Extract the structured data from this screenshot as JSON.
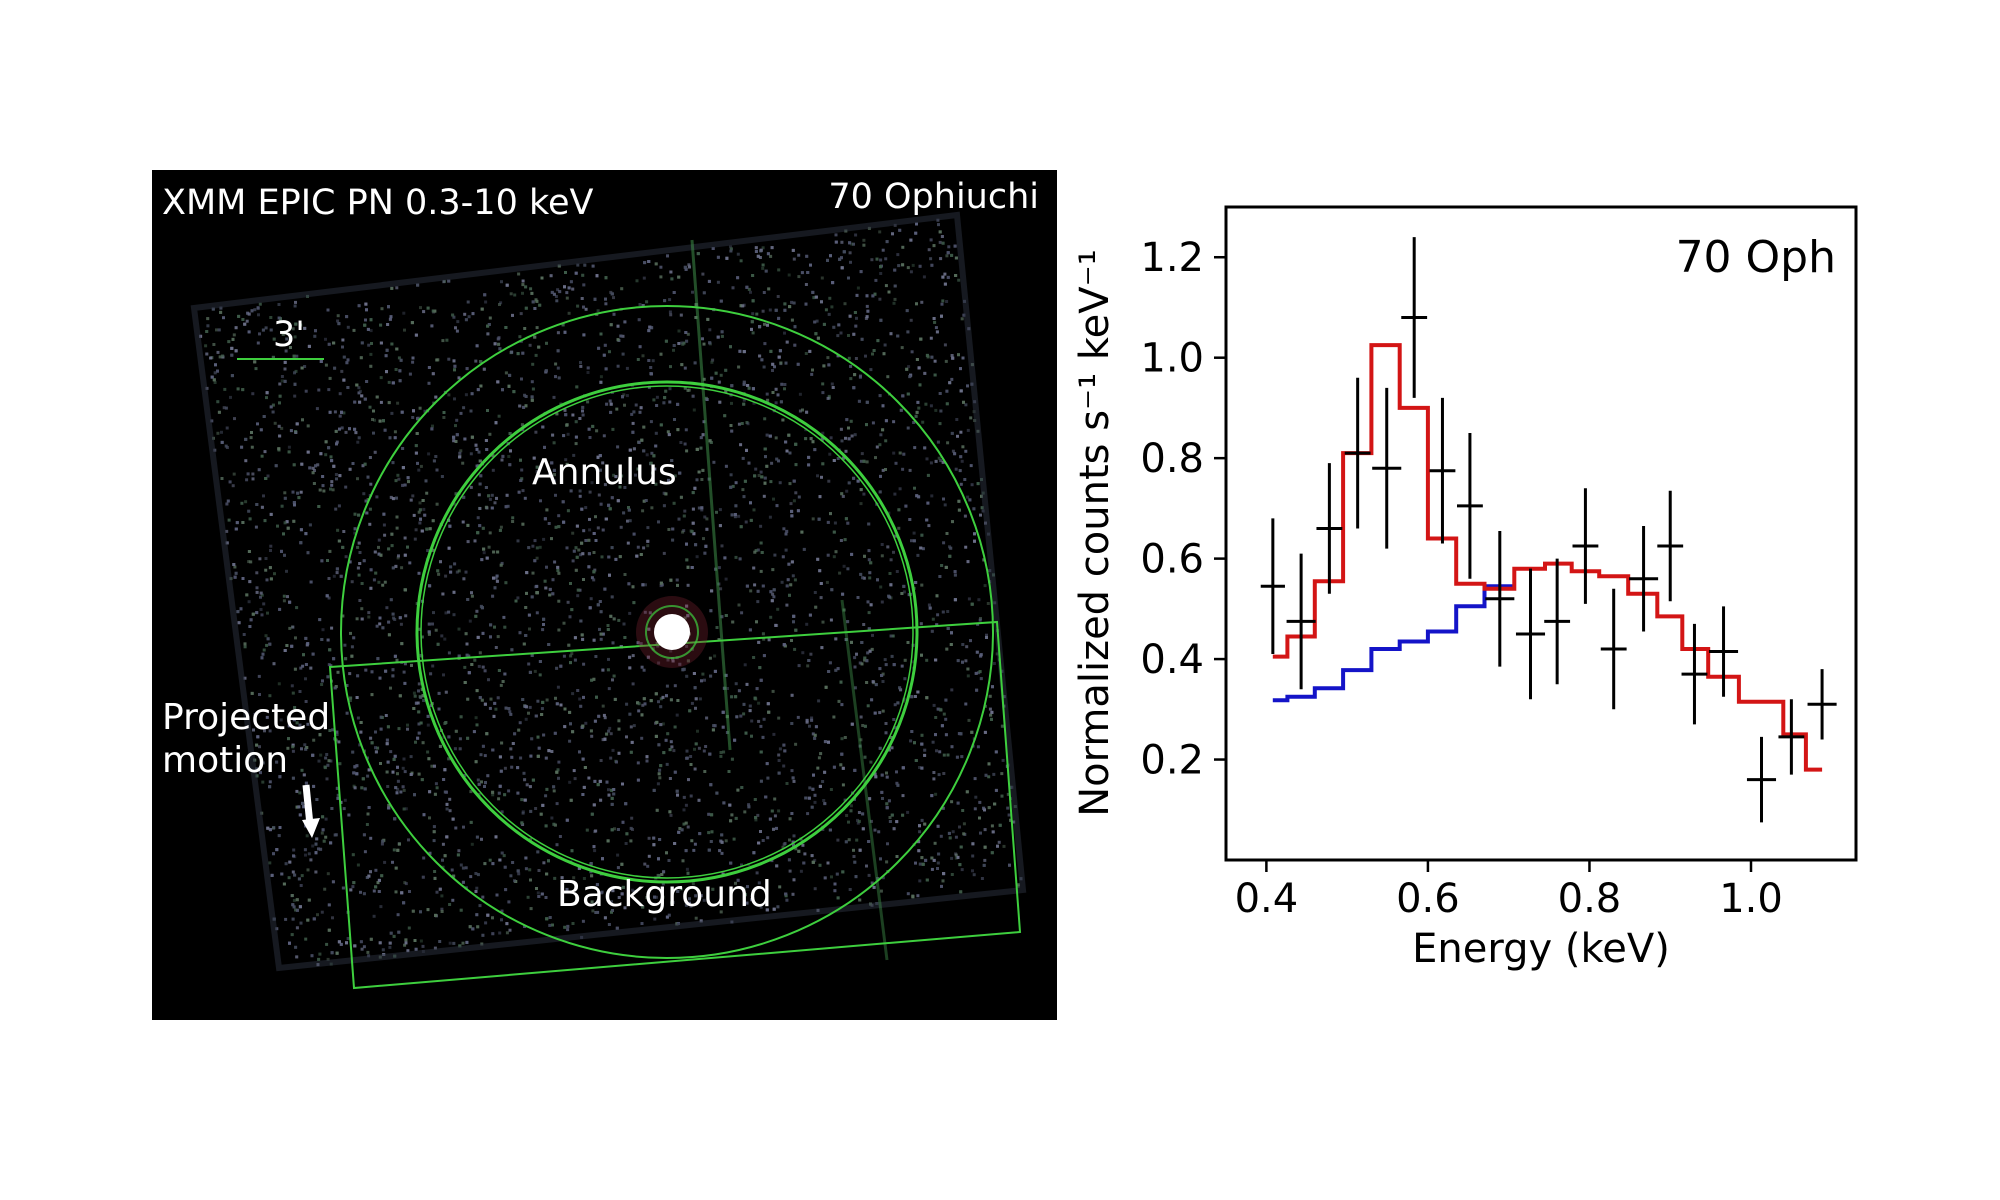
{
  "image_panel": {
    "title": "XMM EPIC PN 0.3-10 keV",
    "target": "70 Ophiuchi",
    "scale_label": "3'",
    "annulus_label": "Annulus",
    "background_label": "Background",
    "motion_label_1": "Projected",
    "motion_label_2": "motion",
    "colors": {
      "background": "#000000",
      "regions": "#3ecf3e",
      "arrow": "#ffffff"
    }
  },
  "chart_data": {
    "type": "line",
    "title": "70 Oph",
    "xlabel": "Energy (keV)",
    "ylabel": "Normalized counts s⁻¹ keV⁻¹",
    "xlim": [
      0.35,
      1.13
    ],
    "ylim": [
      0.0,
      1.3
    ],
    "x_ticks": [
      0.4,
      0.6,
      0.8,
      1.0
    ],
    "x_tick_labels": [
      "0.4",
      "0.6",
      "0.8",
      "1.0"
    ],
    "y_ticks": [
      0.2,
      0.4,
      0.6,
      0.8,
      1.0,
      1.2
    ],
    "y_tick_labels": [
      "0.2",
      "0.4",
      "0.6",
      "0.8",
      "1.0",
      "1.2"
    ],
    "data_points": [
      {
        "x": 0.408,
        "y": 0.545,
        "xerr": 0.015,
        "yerr": 0.135
      },
      {
        "x": 0.443,
        "y": 0.475,
        "xerr": 0.018,
        "yerr": 0.135
      },
      {
        "x": 0.478,
        "y": 0.66,
        "xerr": 0.016,
        "yerr": 0.13
      },
      {
        "x": 0.513,
        "y": 0.81,
        "xerr": 0.016,
        "yerr": 0.15
      },
      {
        "x": 0.549,
        "y": 0.78,
        "xerr": 0.018,
        "yerr": 0.16
      },
      {
        "x": 0.583,
        "y": 1.08,
        "xerr": 0.016,
        "yerr": 0.16
      },
      {
        "x": 0.618,
        "y": 0.775,
        "xerr": 0.016,
        "yerr": 0.145
      },
      {
        "x": 0.652,
        "y": 0.705,
        "xerr": 0.016,
        "yerr": 0.145
      },
      {
        "x": 0.689,
        "y": 0.52,
        "xerr": 0.018,
        "yerr": 0.135
      },
      {
        "x": 0.727,
        "y": 0.45,
        "xerr": 0.018,
        "yerr": 0.13
      },
      {
        "x": 0.76,
        "y": 0.475,
        "xerr": 0.016,
        "yerr": 0.125
      },
      {
        "x": 0.795,
        "y": 0.625,
        "xerr": 0.016,
        "yerr": 0.115
      },
      {
        "x": 0.83,
        "y": 0.42,
        "xerr": 0.016,
        "yerr": 0.12
      },
      {
        "x": 0.867,
        "y": 0.56,
        "xerr": 0.018,
        "yerr": 0.105
      },
      {
        "x": 0.9,
        "y": 0.625,
        "xerr": 0.016,
        "yerr": 0.11
      },
      {
        "x": 0.93,
        "y": 0.37,
        "xerr": 0.016,
        "yerr": 0.1
      },
      {
        "x": 0.966,
        "y": 0.415,
        "xerr": 0.018,
        "yerr": 0.09
      },
      {
        "x": 1.013,
        "y": 0.16,
        "xerr": 0.018,
        "yerr": 0.085
      },
      {
        "x": 1.05,
        "y": 0.245,
        "xerr": 0.016,
        "yerr": 0.075
      },
      {
        "x": 1.088,
        "y": 0.31,
        "xerr": 0.018,
        "yerr": 0.07
      }
    ],
    "series": [
      {
        "color": "#d31515",
        "x": [
          0.408,
          0.426,
          0.426,
          0.46,
          0.46,
          0.495,
          0.495,
          0.53,
          0.53,
          0.565,
          0.565,
          0.6,
          0.6,
          0.635,
          0.635,
          0.67,
          0.67,
          0.707,
          0.707,
          0.745,
          0.745,
          0.778,
          0.778,
          0.812,
          0.812,
          0.848,
          0.848,
          0.884,
          0.884,
          0.915,
          0.915,
          0.947,
          0.947,
          0.985,
          0.985,
          1.04,
          1.04,
          1.068,
          1.068,
          1.088
        ],
        "y": [
          0.405,
          0.405,
          0.445,
          0.445,
          0.555,
          0.555,
          0.81,
          0.81,
          1.025,
          1.025,
          0.9,
          0.9,
          0.64,
          0.64,
          0.55,
          0.55,
          0.54,
          0.54,
          0.58,
          0.58,
          0.59,
          0.59,
          0.575,
          0.575,
          0.565,
          0.565,
          0.53,
          0.53,
          0.485,
          0.485,
          0.42,
          0.42,
          0.365,
          0.365,
          0.315,
          0.315,
          0.25,
          0.25,
          0.18,
          0.18
        ]
      },
      {
        "color": "#1414c8",
        "x": [
          0.408,
          0.426,
          0.426,
          0.46,
          0.46,
          0.495,
          0.495,
          0.53,
          0.53,
          0.565,
          0.565,
          0.6,
          0.6,
          0.635,
          0.635,
          0.67,
          0.67,
          0.707
        ],
        "y": [
          0.318,
          0.318,
          0.325,
          0.325,
          0.342,
          0.342,
          0.378,
          0.378,
          0.42,
          0.42,
          0.435,
          0.435,
          0.455,
          0.455,
          0.505,
          0.505,
          0.545,
          0.545
        ]
      }
    ]
  }
}
